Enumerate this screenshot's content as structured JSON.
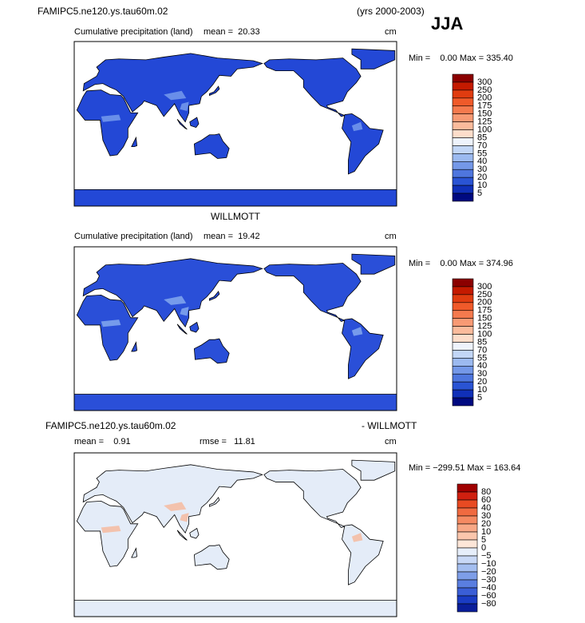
{
  "header": {
    "title": "FAMIPC5.ne120.ys.tau60m.02",
    "years": "(yrs 2000-2003)",
    "season": "JJA"
  },
  "panels": [
    {
      "subtitle": "Cumulative precipitation (land)",
      "mean": "mean =  20.33",
      "units": "cm",
      "minmax": "Min =    0.00 Max = 335.40",
      "land_color": "#2348d6",
      "accent_color": "#7aa0ee",
      "colorbar": {
        "labels": [
          "300",
          "250",
          "200",
          "175",
          "150",
          "125",
          "100",
          "85",
          "70",
          "55",
          "40",
          "30",
          "20",
          "10",
          "5"
        ],
        "colors": [
          "#8b0000",
          "#c41a00",
          "#e03c10",
          "#f05a2a",
          "#f57a4e",
          "#f89a74",
          "#fbbb9c",
          "#fdddca",
          "#eef3fc",
          "#c2d6f6",
          "#9cbaf0",
          "#7498e8",
          "#4e76de",
          "#2a54d4",
          "#1030b8",
          "#000a80"
        ]
      }
    },
    {
      "title": "WILLMOTT",
      "subtitle": "Cumulative precipitation (land)",
      "mean": "mean =  19.42",
      "units": "cm",
      "minmax": "Min =    0.00 Max = 374.96",
      "land_color": "#2a4fd8",
      "accent_color": "#8aaef0",
      "colorbar": {
        "labels": [
          "300",
          "250",
          "200",
          "175",
          "150",
          "125",
          "100",
          "85",
          "70",
          "55",
          "40",
          "30",
          "20",
          "10",
          "5"
        ],
        "colors": [
          "#8b0000",
          "#c41a00",
          "#e03c10",
          "#f05a2a",
          "#f57a4e",
          "#f89a74",
          "#fbbb9c",
          "#fdddca",
          "#eef3fc",
          "#c2d6f6",
          "#9cbaf0",
          "#7498e8",
          "#4e76de",
          "#2a54d4",
          "#1030b8",
          "#000a80"
        ]
      }
    },
    {
      "title": "FAMIPC5.ne120.ys.tau60m.02",
      "title_right": "- WILLMOTT",
      "mean": "mean =    0.91",
      "rmse": "rmse =   11.81",
      "units": "cm",
      "minmax": "Min = −299.51 Max = 163.64",
      "land_color": "#e4ecf8",
      "accent_color": "#f6b89a",
      "colorbar": {
        "labels": [
          "80",
          "60",
          "40",
          "30",
          "20",
          "10",
          "5",
          "0",
          "−5",
          "−10",
          "−20",
          "−30",
          "−40",
          "−60",
          "−80"
        ],
        "colors": [
          "#a00000",
          "#d02010",
          "#e84a22",
          "#f06a40",
          "#f58a62",
          "#f8a886",
          "#fbc6ac",
          "#fde6d8",
          "#e6eefa",
          "#c8d8f6",
          "#a4bef0",
          "#7e9ee8",
          "#5a7ee0",
          "#3a5ed6",
          "#1a3cc4",
          "#0a1e9a"
        ]
      }
    }
  ]
}
